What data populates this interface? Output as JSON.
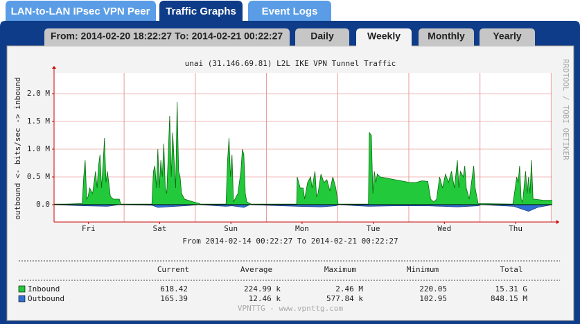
{
  "tabs": [
    "LAN-to-LAN IPsec VPN Peer",
    "Traffic Graphs",
    "Event Logs"
  ],
  "subtabs": {
    "range": "From: 2014-02-20 18:22:27  To: 2014-02-21 00:22:27",
    "items": [
      "Daily",
      "Weekly",
      "Monthly",
      "Yearly"
    ]
  },
  "graph": {
    "type": "area",
    "title": "unai (31.146.69.81) L2L IKE VPN Tunnel Traffic",
    "y_label": "outbound <- bits/sec -> inbound",
    "watermark": "RRDTOOL / TOBI OETIKER",
    "period": "From 2014-02-14 00:22:27  To 2014-02-21 00:22:27",
    "xlim": [
      0,
      168
    ],
    "xticks": [
      {
        "value": 11.625,
        "label": "Fri"
      },
      {
        "value": 35.625,
        "label": "Sat"
      },
      {
        "value": 59.625,
        "label": "Sun"
      },
      {
        "value": 83.625,
        "label": "Mon"
      },
      {
        "value": 107.625,
        "label": "Tue"
      },
      {
        "value": 131.625,
        "label": "Wed"
      },
      {
        "value": 155.625,
        "label": "Thu"
      }
    ],
    "xgrid": [
      23.625,
      47.625,
      71.625,
      95.625,
      119.625,
      143.625,
      167.625
    ],
    "ylim": [
      -0.3125,
      2.375
    ],
    "yticks": [
      {
        "value": 0,
        "label": "0.0"
      },
      {
        "value": 0.5,
        "label": "0.5 M"
      },
      {
        "value": 1,
        "label": "1.0 M"
      },
      {
        "value": 1.5,
        "label": "1.5 M"
      },
      {
        "value": 2,
        "label": "2.0 M"
      }
    ],
    "grid": true,
    "series": [
      {
        "color": "#22c93a",
        "line_color": "#0a6a12",
        "x": [
          0,
          4,
          9.5,
          10,
          10.5,
          11,
          11.5,
          12,
          13,
          14,
          14.5,
          15,
          15.5,
          16,
          16.5,
          17,
          17.5,
          18,
          19,
          20,
          22,
          22.5,
          33,
          33.5,
          34,
          34.5,
          35,
          35.5,
          36,
          36.5,
          37,
          37.5,
          38,
          38.5,
          39,
          39.5,
          40,
          40.5,
          41,
          41.5,
          42,
          42.5,
          43,
          44,
          47,
          49,
          49.5,
          58,
          58.5,
          59,
          59.5,
          60,
          60.5,
          62,
          63,
          63.5,
          64,
          64.5,
          65,
          66.5,
          81.8,
          82,
          83,
          84,
          84.5,
          85.5,
          86.5,
          87,
          88,
          88.5,
          89,
          90,
          91,
          92,
          93,
          94,
          95,
          95.8,
          106,
          106.3,
          107,
          107.5,
          108,
          108.5,
          109,
          110,
          112,
          115,
          118,
          120,
          122,
          124,
          126,
          127,
          128,
          129,
          130,
          131,
          132,
          133,
          134,
          135,
          136,
          136.5,
          137,
          138,
          138.5,
          139,
          140,
          141.5,
          142,
          143,
          154.7,
          155.5,
          156,
          156.5,
          157,
          157.5,
          158,
          159,
          159.5,
          160,
          160.5,
          161,
          161.5,
          162,
          165,
          168
        ],
        "values": [
          0.01,
          0.01,
          0.02,
          0.5,
          0.8,
          0.1,
          0.15,
          0.3,
          0.2,
          0.6,
          0.3,
          0.7,
          0.9,
          0.3,
          0.7,
          1.2,
          0.4,
          0.6,
          0.15,
          0.1,
          0.1,
          0.01,
          0.01,
          0.6,
          0.7,
          0.3,
          1.0,
          0.3,
          0.8,
          0.5,
          1.1,
          0.3,
          0.2,
          0.9,
          1.6,
          0.5,
          1.3,
          0.8,
          0.3,
          1.85,
          0.6,
          0.5,
          0.2,
          0.1,
          0.05,
          0.02,
          0.01,
          0.01,
          0.8,
          1.2,
          0.5,
          0.9,
          0.05,
          0.2,
          0.6,
          1.0,
          0.9,
          0.2,
          0.05,
          0.01,
          0.01,
          0.5,
          0.3,
          0.3,
          0.1,
          0.4,
          0.5,
          0.3,
          0.6,
          0.15,
          0.2,
          0.55,
          0.4,
          0.45,
          0.25,
          0.5,
          0.3,
          0.01,
          0.01,
          1.3,
          1.25,
          0.2,
          0.6,
          0.4,
          0.55,
          0.5,
          0.48,
          0.45,
          0.42,
          0.4,
          0.4,
          0.43,
          0.42,
          0.1,
          0.05,
          0.1,
          0.5,
          0.3,
          0.55,
          0.4,
          0.6,
          0.3,
          0.8,
          0.3,
          0.6,
          0.5,
          0.7,
          0.3,
          0.1,
          0.7,
          0.3,
          0.02,
          0.01,
          0.3,
          0.5,
          0.4,
          0.7,
          0.1,
          0.05,
          0.6,
          0.2,
          0.5,
          0.2,
          0.8,
          0.1,
          0.1,
          0.08,
          0.08
        ]
      },
      {
        "color": "#2f6fd6",
        "line_color": "#1b3f8a",
        "x": [
          0,
          10,
          18,
          22,
          33,
          35,
          41,
          44,
          49,
          58,
          60,
          64,
          66,
          82,
          90,
          95,
          96,
          106,
          115,
          126,
          136,
          143,
          144,
          155,
          160,
          163,
          168
        ],
        "values": [
          0,
          -0.02,
          -0.03,
          0,
          -0.01,
          -0.05,
          -0.03,
          -0.02,
          0,
          -0.03,
          -0.02,
          -0.05,
          0,
          -0.03,
          -0.04,
          -0.02,
          0,
          -0.03,
          -0.02,
          -0.02,
          -0.04,
          -0.02,
          0,
          -0.03,
          -0.12,
          -0.05,
          0
        ]
      }
    ]
  },
  "stats": {
    "columns": [
      "Current",
      "Average",
      "Maximum",
      "Minimum",
      "Total"
    ],
    "rows": [
      {
        "name": "Inbound",
        "values": [
          "618.42",
          "224.99 k",
          "2.46 M",
          "220.05",
          "15.31 G"
        ]
      },
      {
        "name": "Outbound",
        "values": [
          "165.39",
          "12.46 k",
          "577.84 k",
          "102.95",
          "848.15 M"
        ]
      }
    ]
  },
  "footer": "VPNTTG - www.vpnttg.com"
}
